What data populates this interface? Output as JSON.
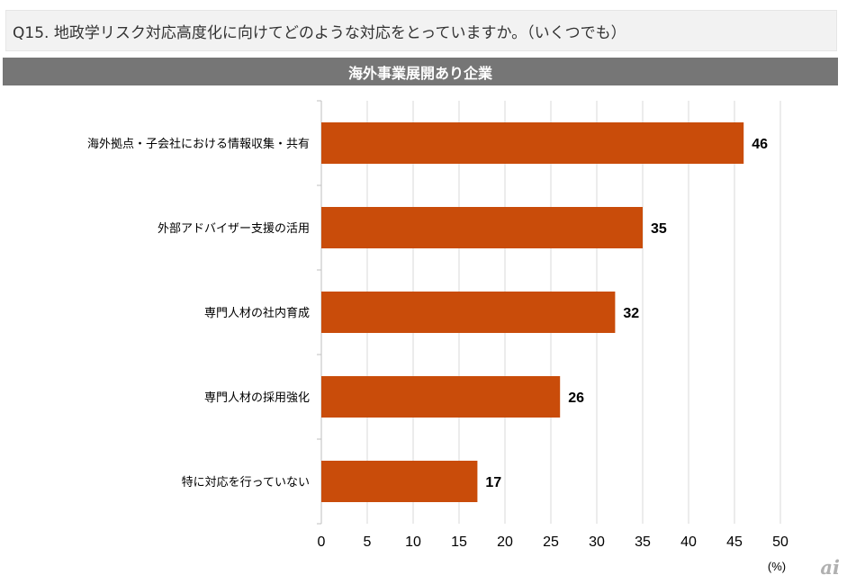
{
  "question": "Q15. 地政学リスク対応高度化に向けてどのような対応をとっていますか。（いくつでも）",
  "header": "海外事業展開あり企業",
  "watermark": "ai",
  "colors": {
    "bar": "#c94c0a",
    "header_bg": "#767676",
    "grid": "#d9d9d9"
  },
  "chart_data": {
    "type": "bar",
    "orientation": "horizontal",
    "categories": [
      "海外拠点・子会社における情報収集・共有",
      "外部アドバイザー支援の活用",
      "専門人材の社内育成",
      "専門人材の採用強化",
      "特に対応を行っていない"
    ],
    "values": [
      46,
      35,
      32,
      26,
      17
    ],
    "data_labels": [
      "46",
      "35",
      "32",
      "26",
      "17"
    ],
    "xlim": [
      0,
      50
    ],
    "xticks": [
      "0",
      "5",
      "10",
      "15",
      "20",
      "25",
      "30",
      "35",
      "40",
      "45",
      "50"
    ],
    "unit_label": "(%)",
    "grid": true,
    "legend": "none"
  }
}
